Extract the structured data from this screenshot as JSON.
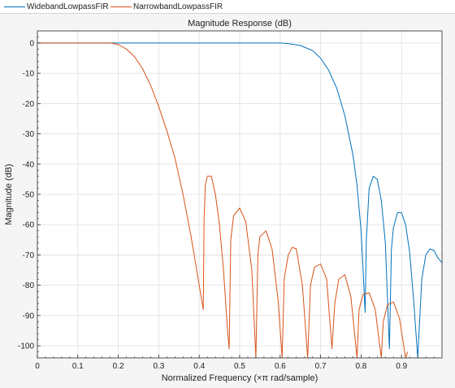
{
  "legend": {
    "items": [
      {
        "label": "WidebandLowpassFIR",
        "color": "#0072bd"
      },
      {
        "label": "NarrowbandLowpassFIR",
        "color": "#d95319"
      }
    ]
  },
  "chart_data": {
    "type": "line",
    "title": "Magnitude Response (dB)",
    "xlabel": "Normalized Frequency (×π rad/sample)",
    "ylabel": "Magnitude (dB)",
    "xlim": [
      0,
      1
    ],
    "ylim": [
      -104,
      4
    ],
    "xticks": [
      0,
      0.1,
      0.2,
      0.3,
      0.4,
      0.5,
      0.6,
      0.7,
      0.8,
      0.9
    ],
    "xtick_labels": [
      "0",
      "0.1",
      "0.2",
      "0.3",
      "0.4",
      "0.5",
      "0.6",
      "0.7",
      "0.8",
      "0.9"
    ],
    "yticks": [
      0,
      -10,
      -20,
      -30,
      -40,
      -50,
      -60,
      -70,
      -80,
      -90,
      -100
    ],
    "ytick_labels": [
      "0",
      "-10",
      "-20",
      "-30",
      "-40",
      "-50",
      "-60",
      "-70",
      "-80",
      "-90",
      "-100"
    ],
    "grid": true,
    "legend_position": "top-left",
    "series": [
      {
        "name": "WidebandLowpassFIR",
        "color": "#0072bd",
        "x": [
          0,
          0.1,
          0.2,
          0.3,
          0.4,
          0.5,
          0.55,
          0.6,
          0.62,
          0.65,
          0.68,
          0.7,
          0.72,
          0.74,
          0.76,
          0.78,
          0.79,
          0.8,
          0.805,
          0.81,
          0.813,
          0.82,
          0.83,
          0.84,
          0.85,
          0.86,
          0.87,
          0.875,
          0.88,
          0.89,
          0.9,
          0.91,
          0.92,
          0.93,
          0.94,
          0.95,
          0.96,
          0.97,
          0.98,
          0.99,
          1.0
        ],
        "y": [
          0,
          0,
          0,
          0,
          0,
          0,
          0,
          0,
          -0.2,
          -0.8,
          -2.5,
          -5,
          -9,
          -15,
          -24,
          -37,
          -47,
          -62,
          -75,
          -89,
          -65,
          -48,
          -44,
          -45,
          -52,
          -66,
          -101,
          -68,
          -61,
          -56,
          -56,
          -60,
          -69,
          -85,
          -104,
          -78,
          -70,
          -68,
          -68.5,
          -71,
          -72.5
        ]
      },
      {
        "name": "NarrowbandLowpassFIR",
        "color": "#d95319",
        "x": [
          0,
          0.1,
          0.18,
          0.2,
          0.22,
          0.24,
          0.26,
          0.28,
          0.3,
          0.32,
          0.34,
          0.36,
          0.38,
          0.4,
          0.41,
          0.412,
          0.415,
          0.42,
          0.43,
          0.44,
          0.45,
          0.46,
          0.47,
          0.474,
          0.478,
          0.485,
          0.5,
          0.515,
          0.53,
          0.54,
          0.545,
          0.55,
          0.565,
          0.58,
          0.595,
          0.605,
          0.61,
          0.62,
          0.63,
          0.64,
          0.655,
          0.668,
          0.675,
          0.685,
          0.7,
          0.715,
          0.728,
          0.735,
          0.745,
          0.76,
          0.775,
          0.79,
          0.795,
          0.805,
          0.82,
          0.835,
          0.85,
          0.855,
          0.865,
          0.88,
          0.895,
          0.91,
          0.915
        ],
        "y": [
          0,
          0,
          0,
          -0.5,
          -2,
          -4.5,
          -8.5,
          -14,
          -21,
          -29,
          -38,
          -50,
          -64,
          -80,
          -88,
          -58,
          -47,
          -44,
          -44,
          -50,
          -60,
          -75,
          -95,
          -101,
          -65,
          -57,
          -54.5,
          -59,
          -75,
          -104,
          -70,
          -64,
          -62,
          -68,
          -85,
          -104,
          -78,
          -70,
          -67.5,
          -68,
          -80,
          -104,
          -80,
          -74,
          -73,
          -78,
          -101,
          -86,
          -78,
          -76.5,
          -84,
          -104,
          -88,
          -83,
          -82.5,
          -88,
          -104,
          -92,
          -86.5,
          -85.5,
          -91,
          -104,
          -102
        ]
      }
    ]
  }
}
